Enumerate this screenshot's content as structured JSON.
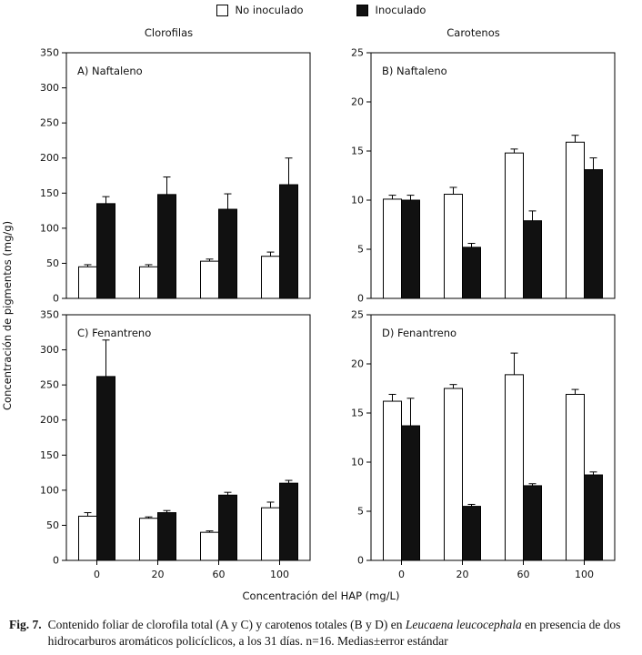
{
  "legend": {
    "items": [
      {
        "label": "No inoculado",
        "color": "#ffffff"
      },
      {
        "label": "Inoculado",
        "color": "#111111"
      }
    ]
  },
  "column_titles": {
    "left": "Clorofilas",
    "right": "Carotenos"
  },
  "axis": {
    "ylabel": "Concentración de pigmentos (mg/g)",
    "xlabel": "Concentración del HAP (mg/L)"
  },
  "chart_data": [
    {
      "type": "bar",
      "panel_label": "A) Naftaleno",
      "categories": [
        "0",
        "20",
        "60",
        "100"
      ],
      "ylim": [
        0,
        350
      ],
      "ytick_step": 50,
      "show_xticklabels": false,
      "series": [
        {
          "name": "No inoculado",
          "values": [
            45,
            45,
            53,
            60
          ],
          "errors": [
            3,
            3,
            3,
            6
          ]
        },
        {
          "name": "Inoculado",
          "values": [
            135,
            148,
            127,
            162
          ],
          "errors": [
            10,
            25,
            22,
            38
          ]
        }
      ]
    },
    {
      "type": "bar",
      "panel_label": "B) Naftaleno",
      "categories": [
        "0",
        "20",
        "60",
        "100"
      ],
      "ylim": [
        0,
        25
      ],
      "ytick_step": 5,
      "show_xticklabels": false,
      "series": [
        {
          "name": "No inoculado",
          "values": [
            10.1,
            10.6,
            14.8,
            15.9
          ],
          "errors": [
            0.4,
            0.7,
            0.4,
            0.7
          ]
        },
        {
          "name": "Inoculado",
          "values": [
            10.0,
            5.2,
            7.9,
            13.1
          ],
          "errors": [
            0.5,
            0.4,
            1.0,
            1.2
          ]
        }
      ]
    },
    {
      "type": "bar",
      "panel_label": "C) Fenantreno",
      "categories": [
        "0",
        "20",
        "60",
        "100"
      ],
      "ylim": [
        0,
        350
      ],
      "ytick_step": 50,
      "show_xticklabels": true,
      "series": [
        {
          "name": "No inoculado",
          "values": [
            63,
            60,
            40,
            75
          ],
          "errors": [
            5,
            2,
            2,
            8
          ]
        },
        {
          "name": "Inoculado",
          "values": [
            262,
            68,
            93,
            110
          ],
          "errors": [
            52,
            3,
            4,
            4
          ]
        }
      ]
    },
    {
      "type": "bar",
      "panel_label": "D) Fenantreno",
      "categories": [
        "0",
        "20",
        "60",
        "100"
      ],
      "ylim": [
        0,
        25
      ],
      "ytick_step": 5,
      "show_xticklabels": true,
      "series": [
        {
          "name": "No inoculado",
          "values": [
            16.2,
            17.5,
            18.9,
            16.9
          ],
          "errors": [
            0.7,
            0.4,
            2.2,
            0.5
          ]
        },
        {
          "name": "Inoculado",
          "values": [
            13.7,
            5.5,
            7.6,
            8.7
          ],
          "errors": [
            2.8,
            0.2,
            0.2,
            0.3
          ]
        }
      ]
    }
  ],
  "caption": {
    "fig_label": "Fig. 7.",
    "part1": "Contenido foliar de clorofila total (A y C) y carotenos totales (B y D) en ",
    "species": "Leucaena leucocephala",
    "part2": " en presencia de dos hidrocarburos aromáticos policíclicos, a los 31 días. n=16. Medias±error estándar"
  }
}
